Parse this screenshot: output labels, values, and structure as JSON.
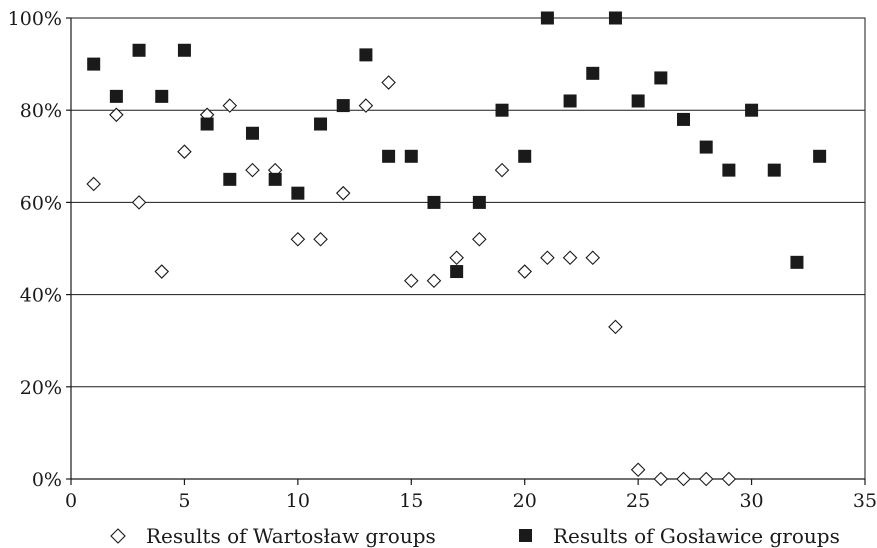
{
  "chart_data": {
    "type": "scatter",
    "xlim": [
      0,
      35
    ],
    "ylim": [
      0,
      100
    ],
    "x_ticks": [
      0,
      5,
      10,
      15,
      20,
      25,
      30,
      35
    ],
    "y_ticks": [
      0,
      20,
      40,
      60,
      80,
      100
    ],
    "x_tick_labels": [
      "0",
      "5",
      "10",
      "15",
      "20",
      "25",
      "30",
      "35"
    ],
    "y_tick_labels": [
      "0%",
      "20%",
      "40%",
      "60%",
      "80%",
      "100%"
    ],
    "grid": "horizontal",
    "legend_position": "bottom",
    "series": [
      {
        "name": "Results of Wartosław groups",
        "marker": "diamond-open",
        "x": [
          1,
          2,
          3,
          4,
          5,
          6,
          7,
          8,
          9,
          10,
          11,
          12,
          13,
          14,
          15,
          16,
          17,
          18,
          19,
          20,
          21,
          22,
          23,
          24,
          25,
          26,
          27,
          28,
          29
        ],
        "y": [
          64,
          79,
          60,
          45,
          71,
          79,
          81,
          67,
          67,
          52,
          52,
          62,
          81,
          86,
          43,
          43,
          48,
          52,
          67,
          45,
          48,
          48,
          48,
          33,
          2,
          0,
          0,
          0,
          0
        ]
      },
      {
        "name": "Results of Gosławice groups",
        "marker": "square-filled",
        "x": [
          1,
          2,
          3,
          4,
          5,
          6,
          7,
          8,
          9,
          10,
          11,
          12,
          13,
          14,
          15,
          16,
          17,
          18,
          19,
          20,
          21,
          22,
          23,
          24,
          25,
          26,
          27,
          28,
          29,
          30,
          31,
          32,
          33
        ],
        "y": [
          90,
          83,
          93,
          83,
          93,
          77,
          65,
          75,
          65,
          62,
          77,
          81,
          92,
          70,
          70,
          60,
          45,
          60,
          80,
          70,
          100,
          82,
          88,
          100,
          82,
          87,
          78,
          72,
          67,
          80,
          67,
          47,
          70
        ]
      }
    ],
    "colors": {
      "ink": "#1a1a1a",
      "background": "#ffffff"
    }
  }
}
